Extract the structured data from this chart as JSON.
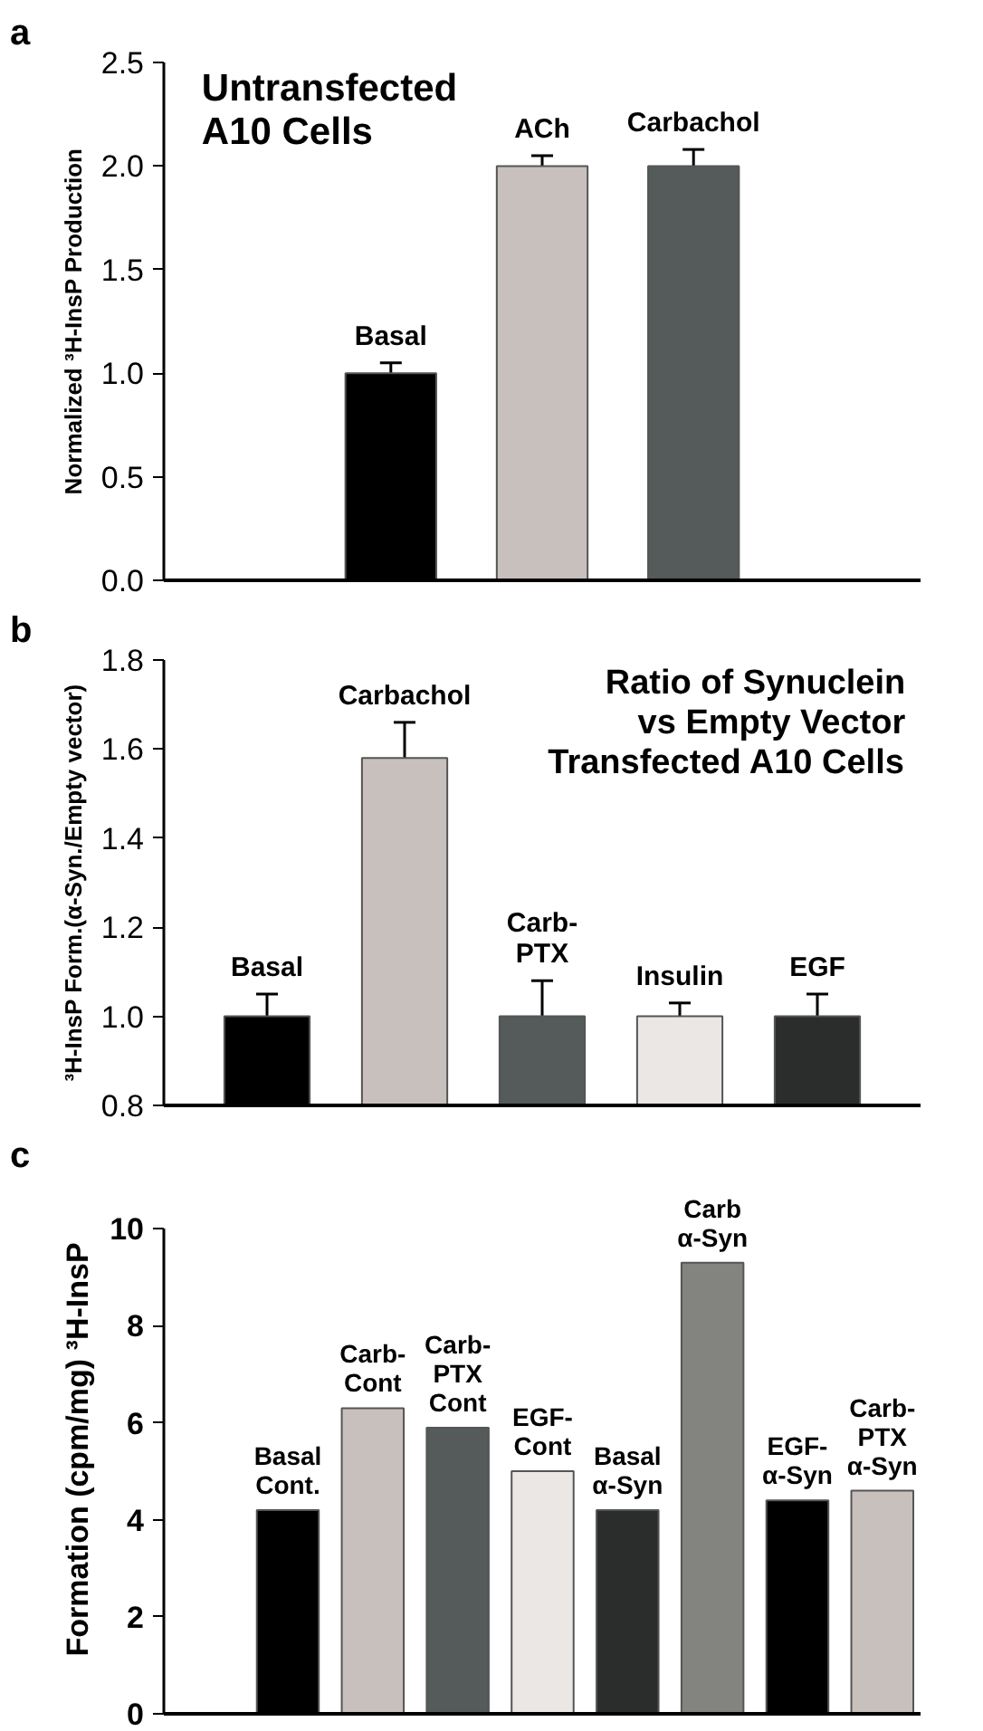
{
  "chart_data": [
    {
      "type": "bar",
      "title": "Untransfected\nA10 Cells",
      "ylabel": "Normalized ³H-InsP Production",
      "annotations": [
        "a"
      ],
      "categories": [
        null,
        "Basal",
        "ACh",
        "Carbachol",
        null
      ],
      "values": [
        null,
        1.0,
        2.0,
        2.0,
        null
      ],
      "errors": [
        null,
        [
          1.0,
          1.05
        ],
        [
          2.0,
          2.05
        ],
        [
          2.0,
          2.08
        ],
        null
      ],
      "colors": [
        "#ffffff",
        "#000000",
        "#c8c0bd",
        "#555a5a",
        "#ffffff"
      ],
      "ylim": [
        0,
        2.5
      ],
      "yticks": [
        {
          "value": 0,
          "label": "0.0"
        },
        {
          "value": 0.5,
          "label": "0.5"
        },
        {
          "value": 1,
          "label": "1.0"
        },
        {
          "value": 1.5,
          "label": "1.5"
        },
        {
          "value": 2,
          "label": "2.0"
        },
        {
          "value": 2.5,
          "label": "2.5"
        }
      ],
      "grid": false
    },
    {
      "type": "bar",
      "title": "Ratio of Synuclein\nvs Empty Vector\nTransfected A10 Cells",
      "ylabel": "³H-InsP Form.(α-Syn./Empty vector)",
      "annotations": [
        "b"
      ],
      "categories": [
        "Basal",
        "Carbachol",
        "Carb-\nPTX",
        "Insulin",
        "EGF"
      ],
      "values": [
        1.0,
        1.58,
        1.0,
        1.0,
        1.0
      ],
      "errors": [
        [
          1.0,
          1.05
        ],
        [
          1.58,
          1.66
        ],
        [
          1.0,
          1.08
        ],
        [
          1.0,
          1.03
        ],
        [
          1.0,
          1.05
        ]
      ],
      "colors": [
        "#000000",
        "#c8c0bd",
        "#555a5a",
        "#ebe7e4",
        "#2b2d2d"
      ],
      "ylim": [
        0.8,
        1.8
      ],
      "yticks": [
        {
          "value": 0.8,
          "label": "0.8"
        },
        {
          "value": 1,
          "label": "1.0"
        },
        {
          "value": 1.2,
          "label": "1.2"
        },
        {
          "value": 1.4,
          "label": "1.4"
        },
        {
          "value": 1.6,
          "label": "1.6"
        },
        {
          "value": 1.8,
          "label": "1.8"
        }
      ],
      "grid": false
    },
    {
      "type": "bar",
      "ylabel": "Formation (cpm/mg) ³H-InsP",
      "annotations": [
        "c"
      ],
      "categories": [
        "Basal\nCont.",
        "Carb-\nCont",
        "Carb-\nPTX\nCont",
        "EGF-\nCont",
        "Basal\nα-Syn",
        "Carb\nα-Syn",
        "EGF-\nα-Syn",
        "Carb-\nPTX\nα-Syn"
      ],
      "values": [
        4.2,
        6.3,
        5.9,
        5.0,
        4.2,
        9.3,
        4.4,
        4.6
      ],
      "colors": [
        "#000000",
        "#c8c0bd",
        "#555a5a",
        "#ebe7e4",
        "#2b2d2d",
        "#838380",
        "#000000",
        "#c8c0bd"
      ],
      "ylim": [
        0,
        10
      ],
      "yticks": [
        0,
        2,
        4,
        6,
        8,
        10
      ],
      "grid": false
    }
  ]
}
